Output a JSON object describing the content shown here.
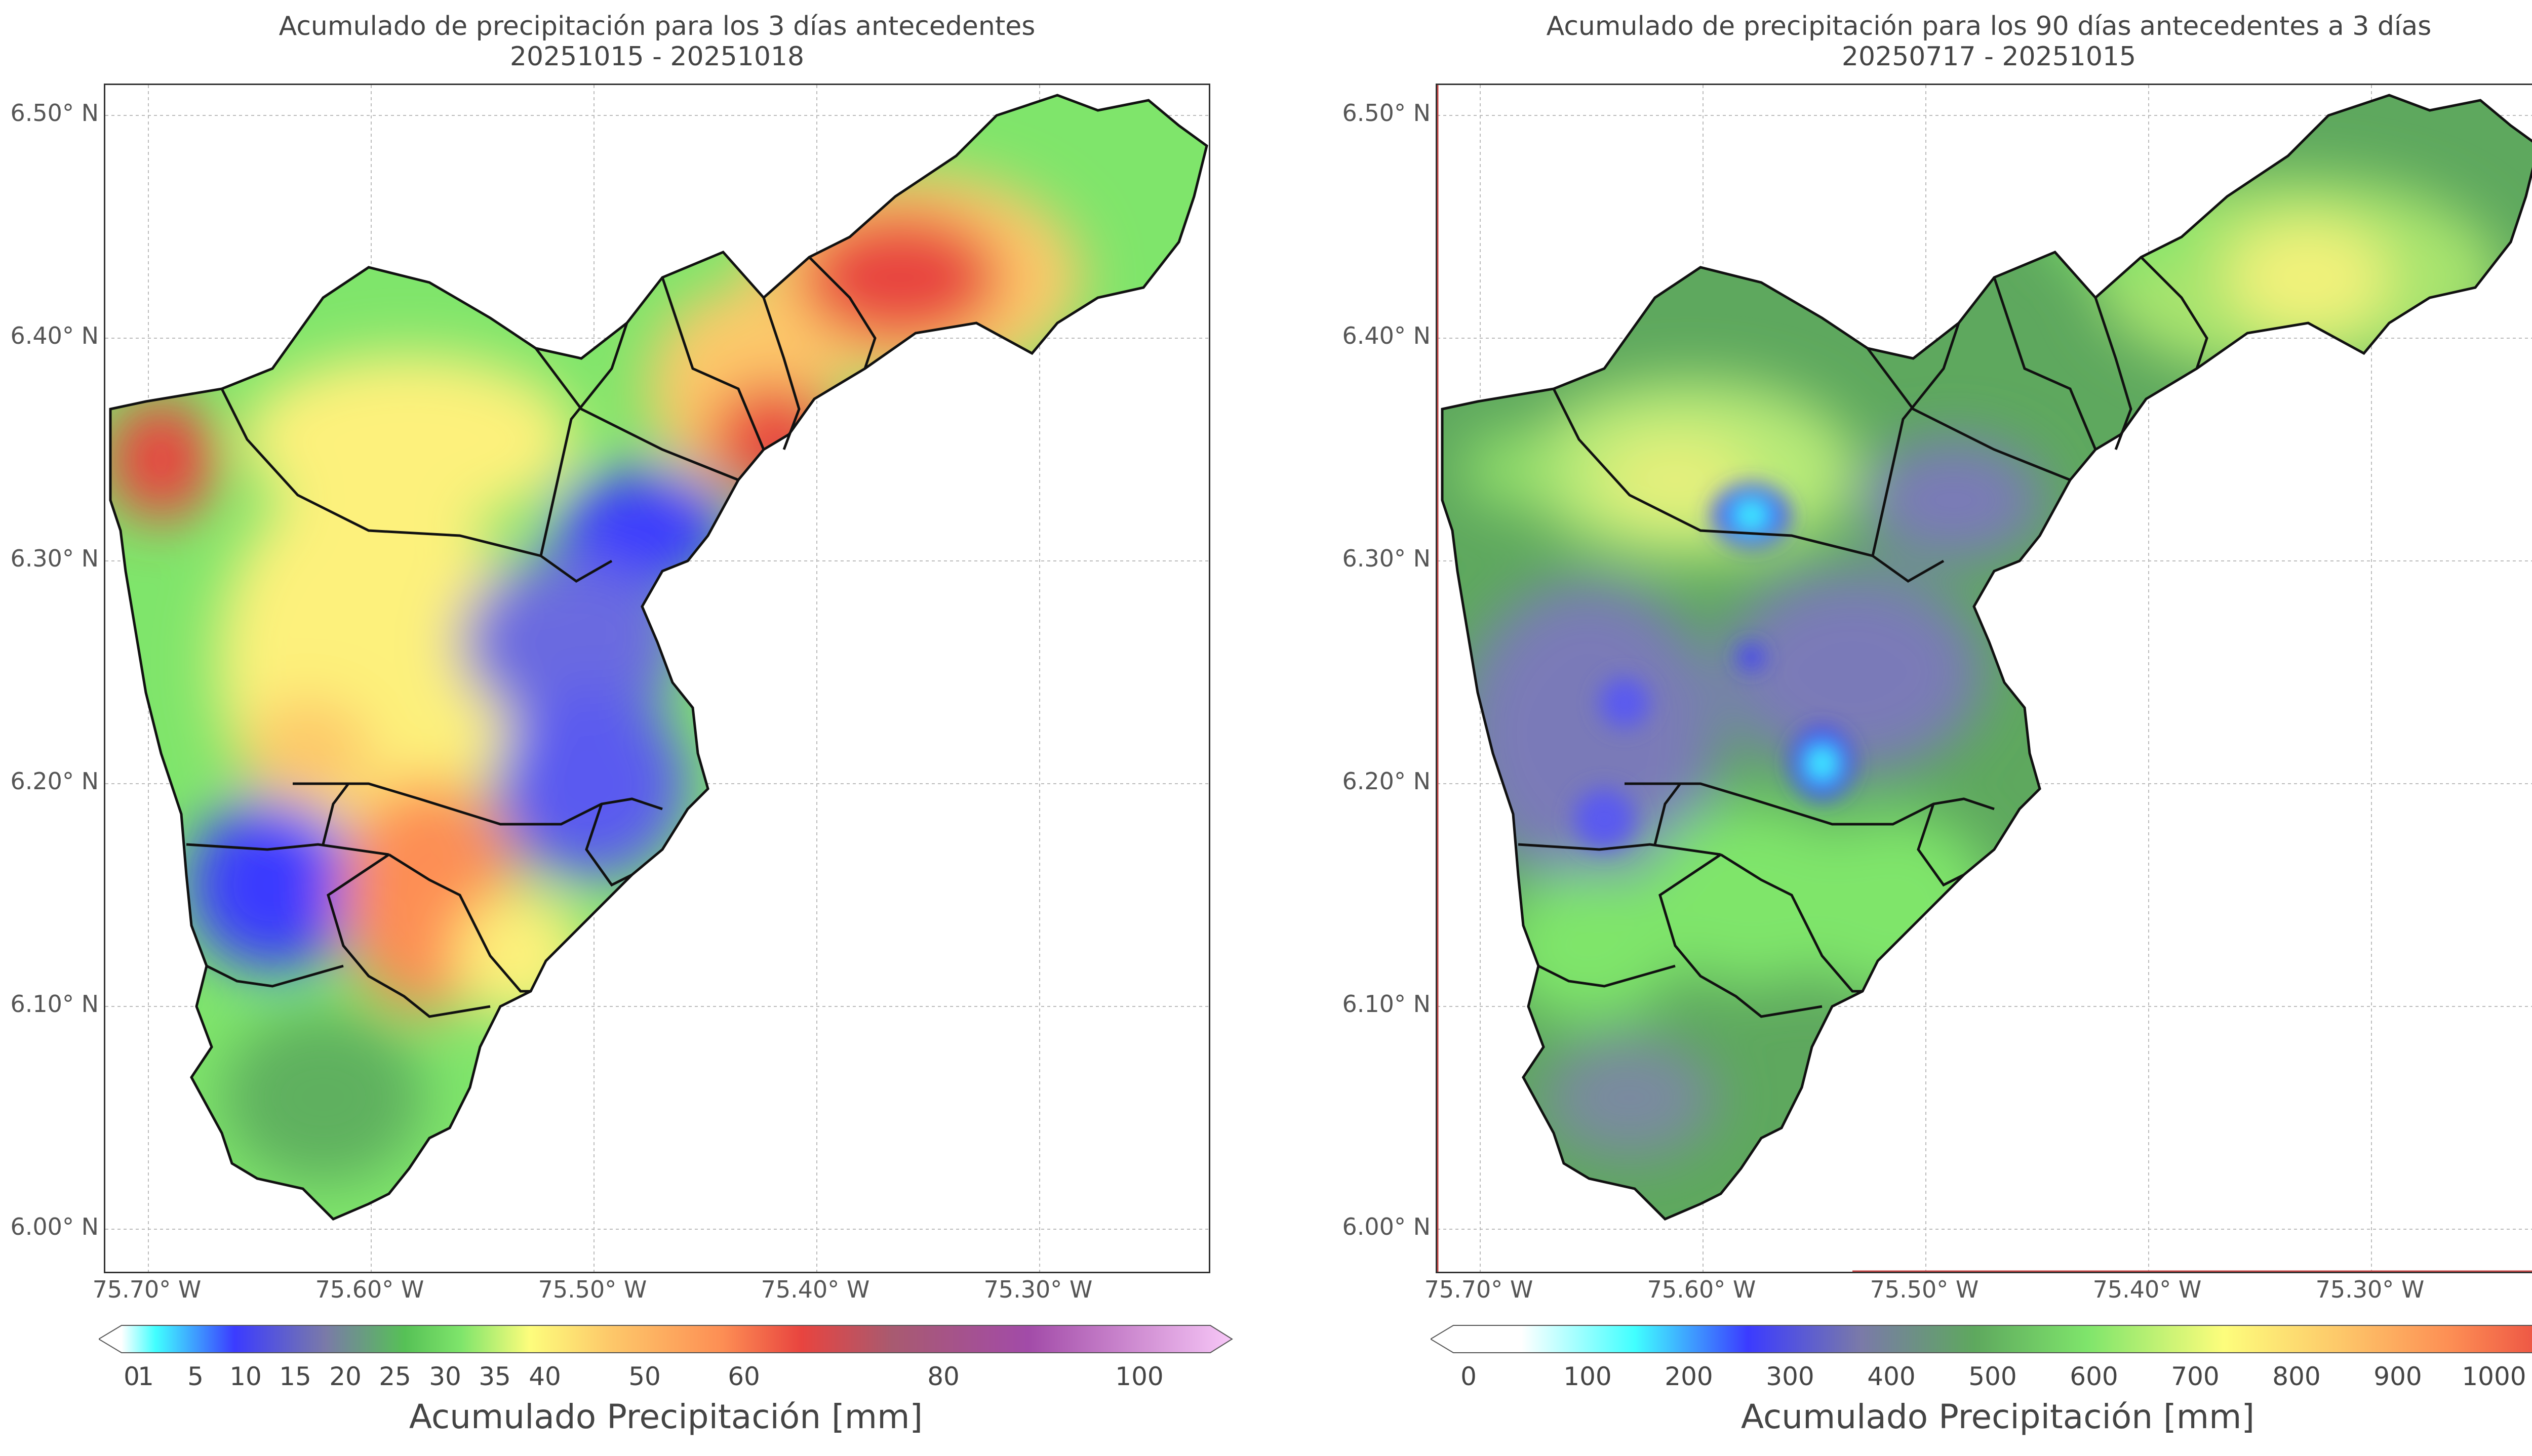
{
  "panels": [
    {
      "id": "left",
      "title_line1": "Acumulado de precipitación para los 3 días antecedentes",
      "title_line2": "20251015 - 20251018",
      "colorbar_label": "Acumulado Precipitación [mm]",
      "colorbar_ticks": [
        "0",
        "1",
        "5",
        "10",
        "15",
        "20",
        "25",
        "30",
        "35",
        "40",
        "50",
        "60",
        "80",
        "100"
      ],
      "colorbar_colors": [
        "#ffffff",
        "#41ffff",
        "#3b3bff",
        "#7a7aa8",
        "#56c156",
        "#7fe56b",
        "#c9f07a",
        "#fdfd7c",
        "#fdc96a",
        "#fd8e54",
        "#e8443f",
        "#a85a70",
        "#a24ba8",
        "#f7c7f7"
      ]
    },
    {
      "id": "right",
      "title_line1": "Acumulado de precipitación para los 90 días antecedentes a 3 días",
      "title_line2": "20250717 - 20251015",
      "colorbar_label": "Acumulado Precipitación [mm]",
      "colorbar_ticks": [
        "0",
        "100",
        "200",
        "300",
        "400",
        "500",
        "600",
        "700",
        "800",
        "900",
        "1000"
      ],
      "colorbar_colors": [
        "#ffffff",
        "#ffffff",
        "#41ffff",
        "#3b3bff",
        "#7a7aa8",
        "#5ea85e",
        "#7fe56b",
        "#fdfd7c",
        "#fdc96a",
        "#fd8e54",
        "#e8443f"
      ]
    }
  ],
  "axes": {
    "y_ticks": [
      "6.50° N",
      "6.40° N",
      "6.30° N",
      "6.20° N",
      "6.10° N",
      "6.00° N"
    ],
    "x_ticks": [
      "75.70° W",
      "75.60° W",
      "75.50° W",
      "75.40° W",
      "75.30° W"
    ]
  },
  "style": {
    "left_base": "#7fe56b",
    "right_base": "#5ea85e",
    "outline": "#111111"
  }
}
